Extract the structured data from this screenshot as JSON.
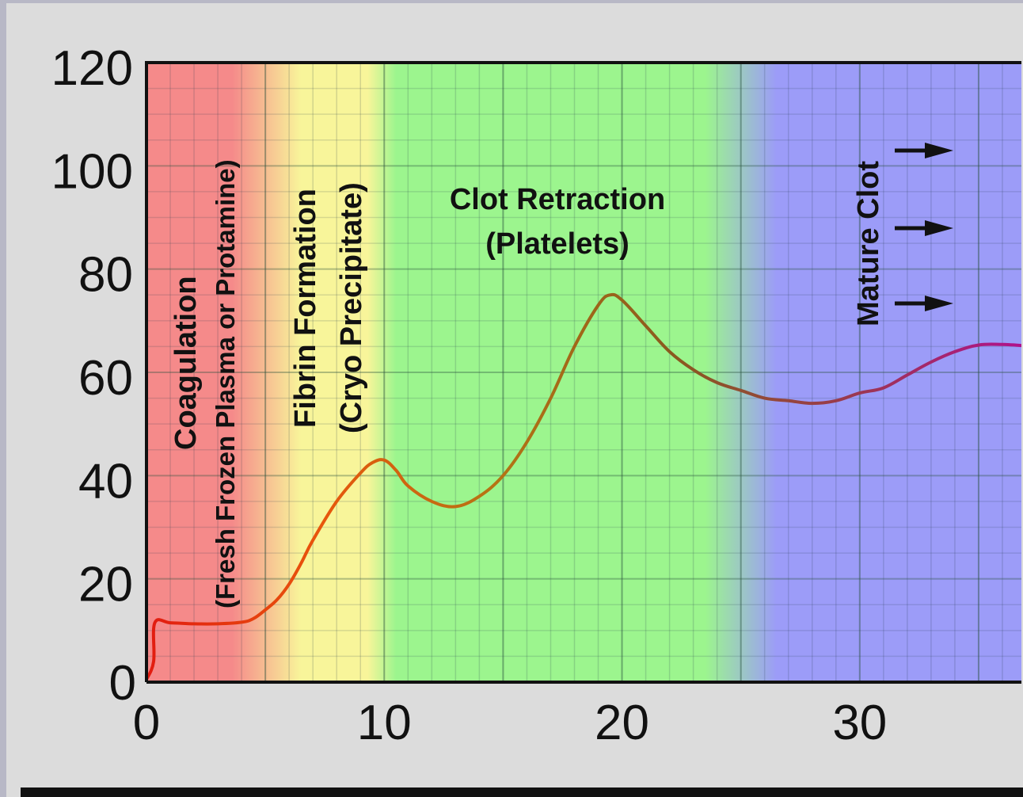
{
  "chart_data": {
    "type": "line",
    "title": "",
    "xlabel": "",
    "ylabel": "",
    "xlim": [
      0,
      36.8
    ],
    "ylim": [
      0,
      120
    ],
    "x_ticks": [
      "0",
      "10",
      "20",
      "30"
    ],
    "y_ticks": [
      "0",
      "20",
      "40",
      "60",
      "80",
      "100",
      "120"
    ],
    "grid": true,
    "phase_colors": {
      "coagulation": "#f58a8a",
      "fibrin": "#f8f59a",
      "retraction": "#9cf58e",
      "mature": "#9c9cf8"
    },
    "annotations": {
      "coagulation_title": "Coagulation",
      "coagulation_sub": "(Fresh Frozen Plasma or Protamine)",
      "fibrin_title": "Fibrin Formation",
      "fibrin_sub": "(Cryo Precipitate)",
      "retraction_title": "Clot Retraction",
      "retraction_sub": "(Platelets)",
      "mature_title": "Mature Clot"
    },
    "series": [
      {
        "x": [
          0,
          0.3,
          0.35,
          1,
          2,
          3,
          4,
          4.5,
          5,
          5.5,
          6,
          6.5,
          7,
          8,
          9,
          9.5,
          10,
          10.5,
          11,
          12,
          13,
          14,
          15,
          16,
          17,
          18,
          19,
          19.5,
          20,
          21,
          22,
          23,
          24,
          25,
          26,
          27,
          28,
          29,
          30,
          31,
          32,
          33,
          34,
          35,
          36,
          36.8
        ],
        "y": [
          0.5,
          4,
          11.5,
          11.5,
          11.3,
          11.3,
          11.6,
          12.3,
          14,
          16,
          19,
          23,
          27.5,
          35,
          40.5,
          42.5,
          43,
          41,
          38,
          35,
          34,
          36,
          40,
          46.5,
          55,
          65,
          73,
          75,
          74,
          69,
          64,
          60.5,
          58,
          56.5,
          55,
          54.5,
          54,
          54.5,
          56,
          57,
          59.5,
          62,
          64,
          65.3,
          65.4,
          65.2
        ],
        "colors": [
          "#e21b10",
          "#e8560c",
          "#b57414",
          "#8a5a1e",
          "#9a3a4e",
          "#b0128c"
        ]
      }
    ]
  }
}
